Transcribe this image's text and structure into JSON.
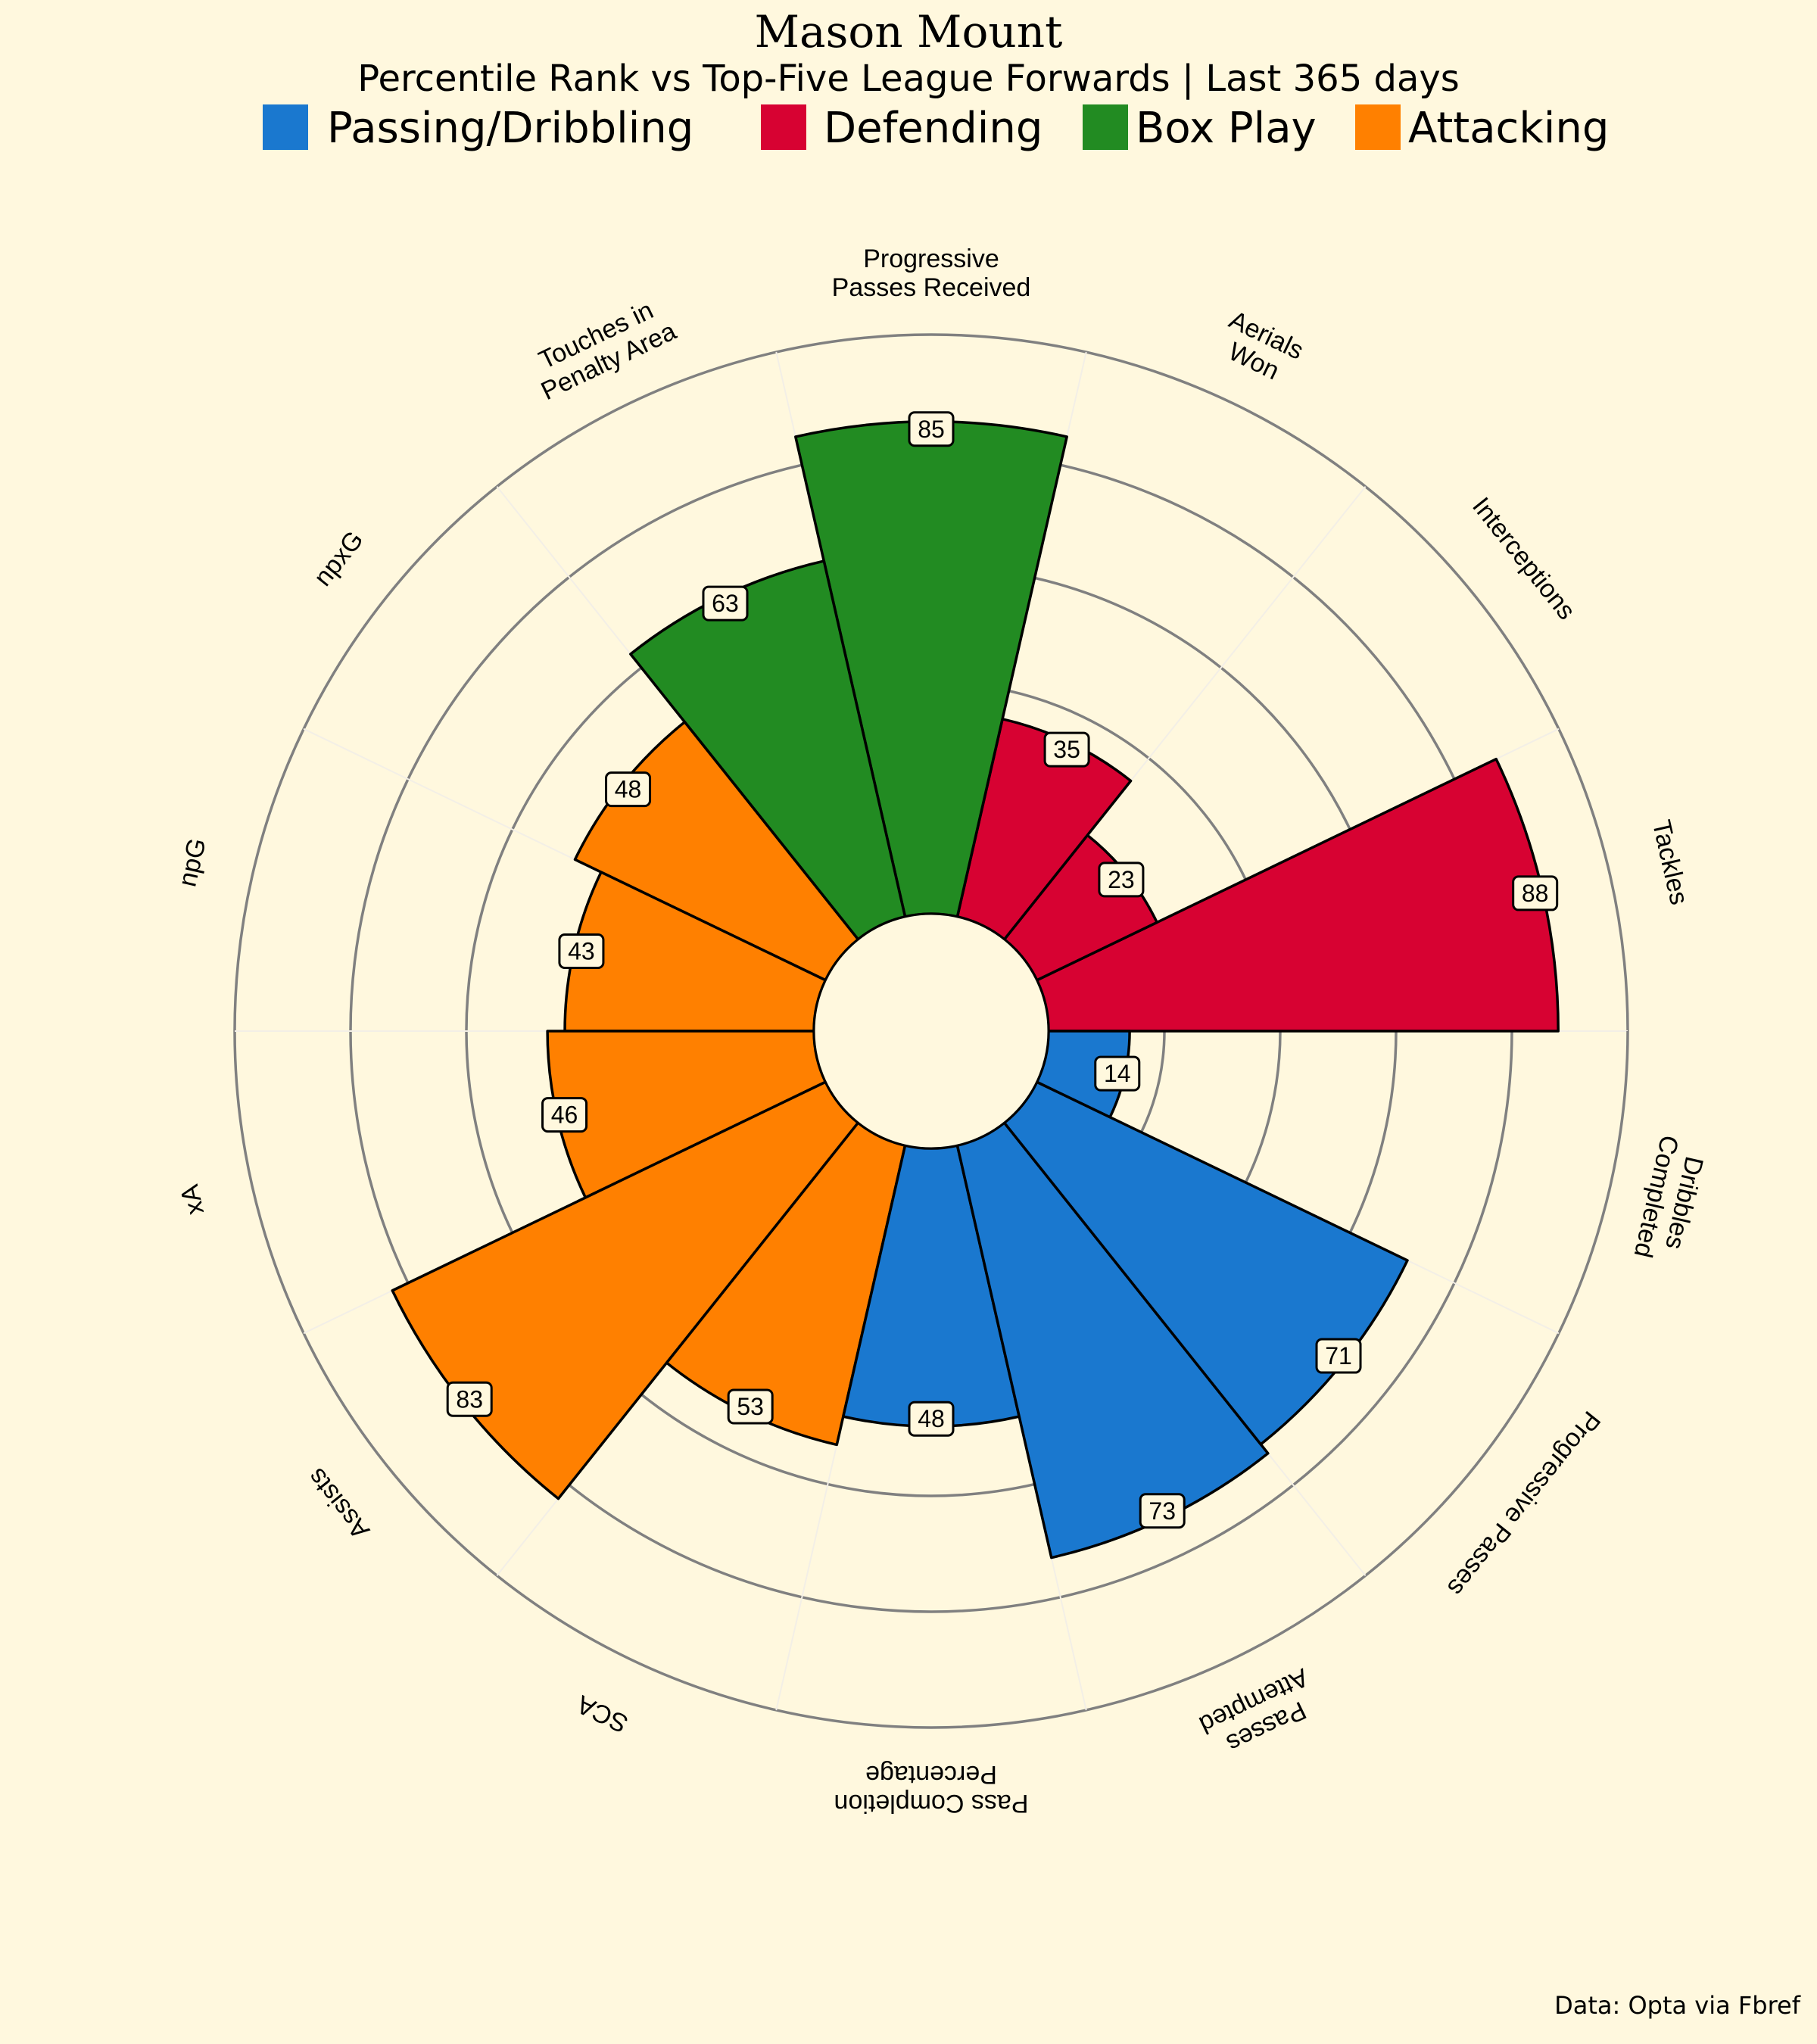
{
  "chart_data": {
    "type": "pizza",
    "title": "Mason Mount",
    "subtitle": "Percentile Rank vs Top-Five League Forwards | Last 365 days",
    "credit": "Data: Opta via Fbref",
    "range": [
      0,
      100
    ],
    "legend": [
      {
        "label": "Passing/Dribbling",
        "color": "#1a78cf"
      },
      {
        "label": "Defending",
        "color": "#d70232"
      },
      {
        "label": "Box Play",
        "color": "#228b22"
      },
      {
        "label": "Attacking",
        "color": "#ff8000"
      }
    ],
    "params": [
      {
        "label": "Tackles",
        "value": 88,
        "group": "Defending"
      },
      {
        "label": "Interceptions",
        "value": 23,
        "group": "Defending"
      },
      {
        "label": "Aerials\nWon",
        "value": 35,
        "group": "Defending"
      },
      {
        "label": "Progressive\nPasses Received",
        "value": 85,
        "group": "Box Play"
      },
      {
        "label": "Touches in\nPenalty Area",
        "value": 63,
        "group": "Box Play"
      },
      {
        "label": "npxG",
        "value": 48,
        "group": "Attacking"
      },
      {
        "label": "npG",
        "value": 43,
        "group": "Attacking"
      },
      {
        "label": "xA",
        "value": 46,
        "group": "Attacking"
      },
      {
        "label": "Assists",
        "value": 83,
        "group": "Attacking"
      },
      {
        "label": "SCA",
        "value": 53,
        "group": "Attacking"
      },
      {
        "label": "Pass Completion\nPercentage",
        "value": 48,
        "group": "Passing/Dribbling"
      },
      {
        "label": "Passes\nAttempted",
        "value": 73,
        "group": "Passing/Dribbling"
      },
      {
        "label": "Progressive Passes",
        "value": 71,
        "group": "Passing/Dribbling"
      },
      {
        "label": "Dribbles\nCompleted",
        "value": 14,
        "group": "Passing/Dribbling"
      }
    ]
  }
}
